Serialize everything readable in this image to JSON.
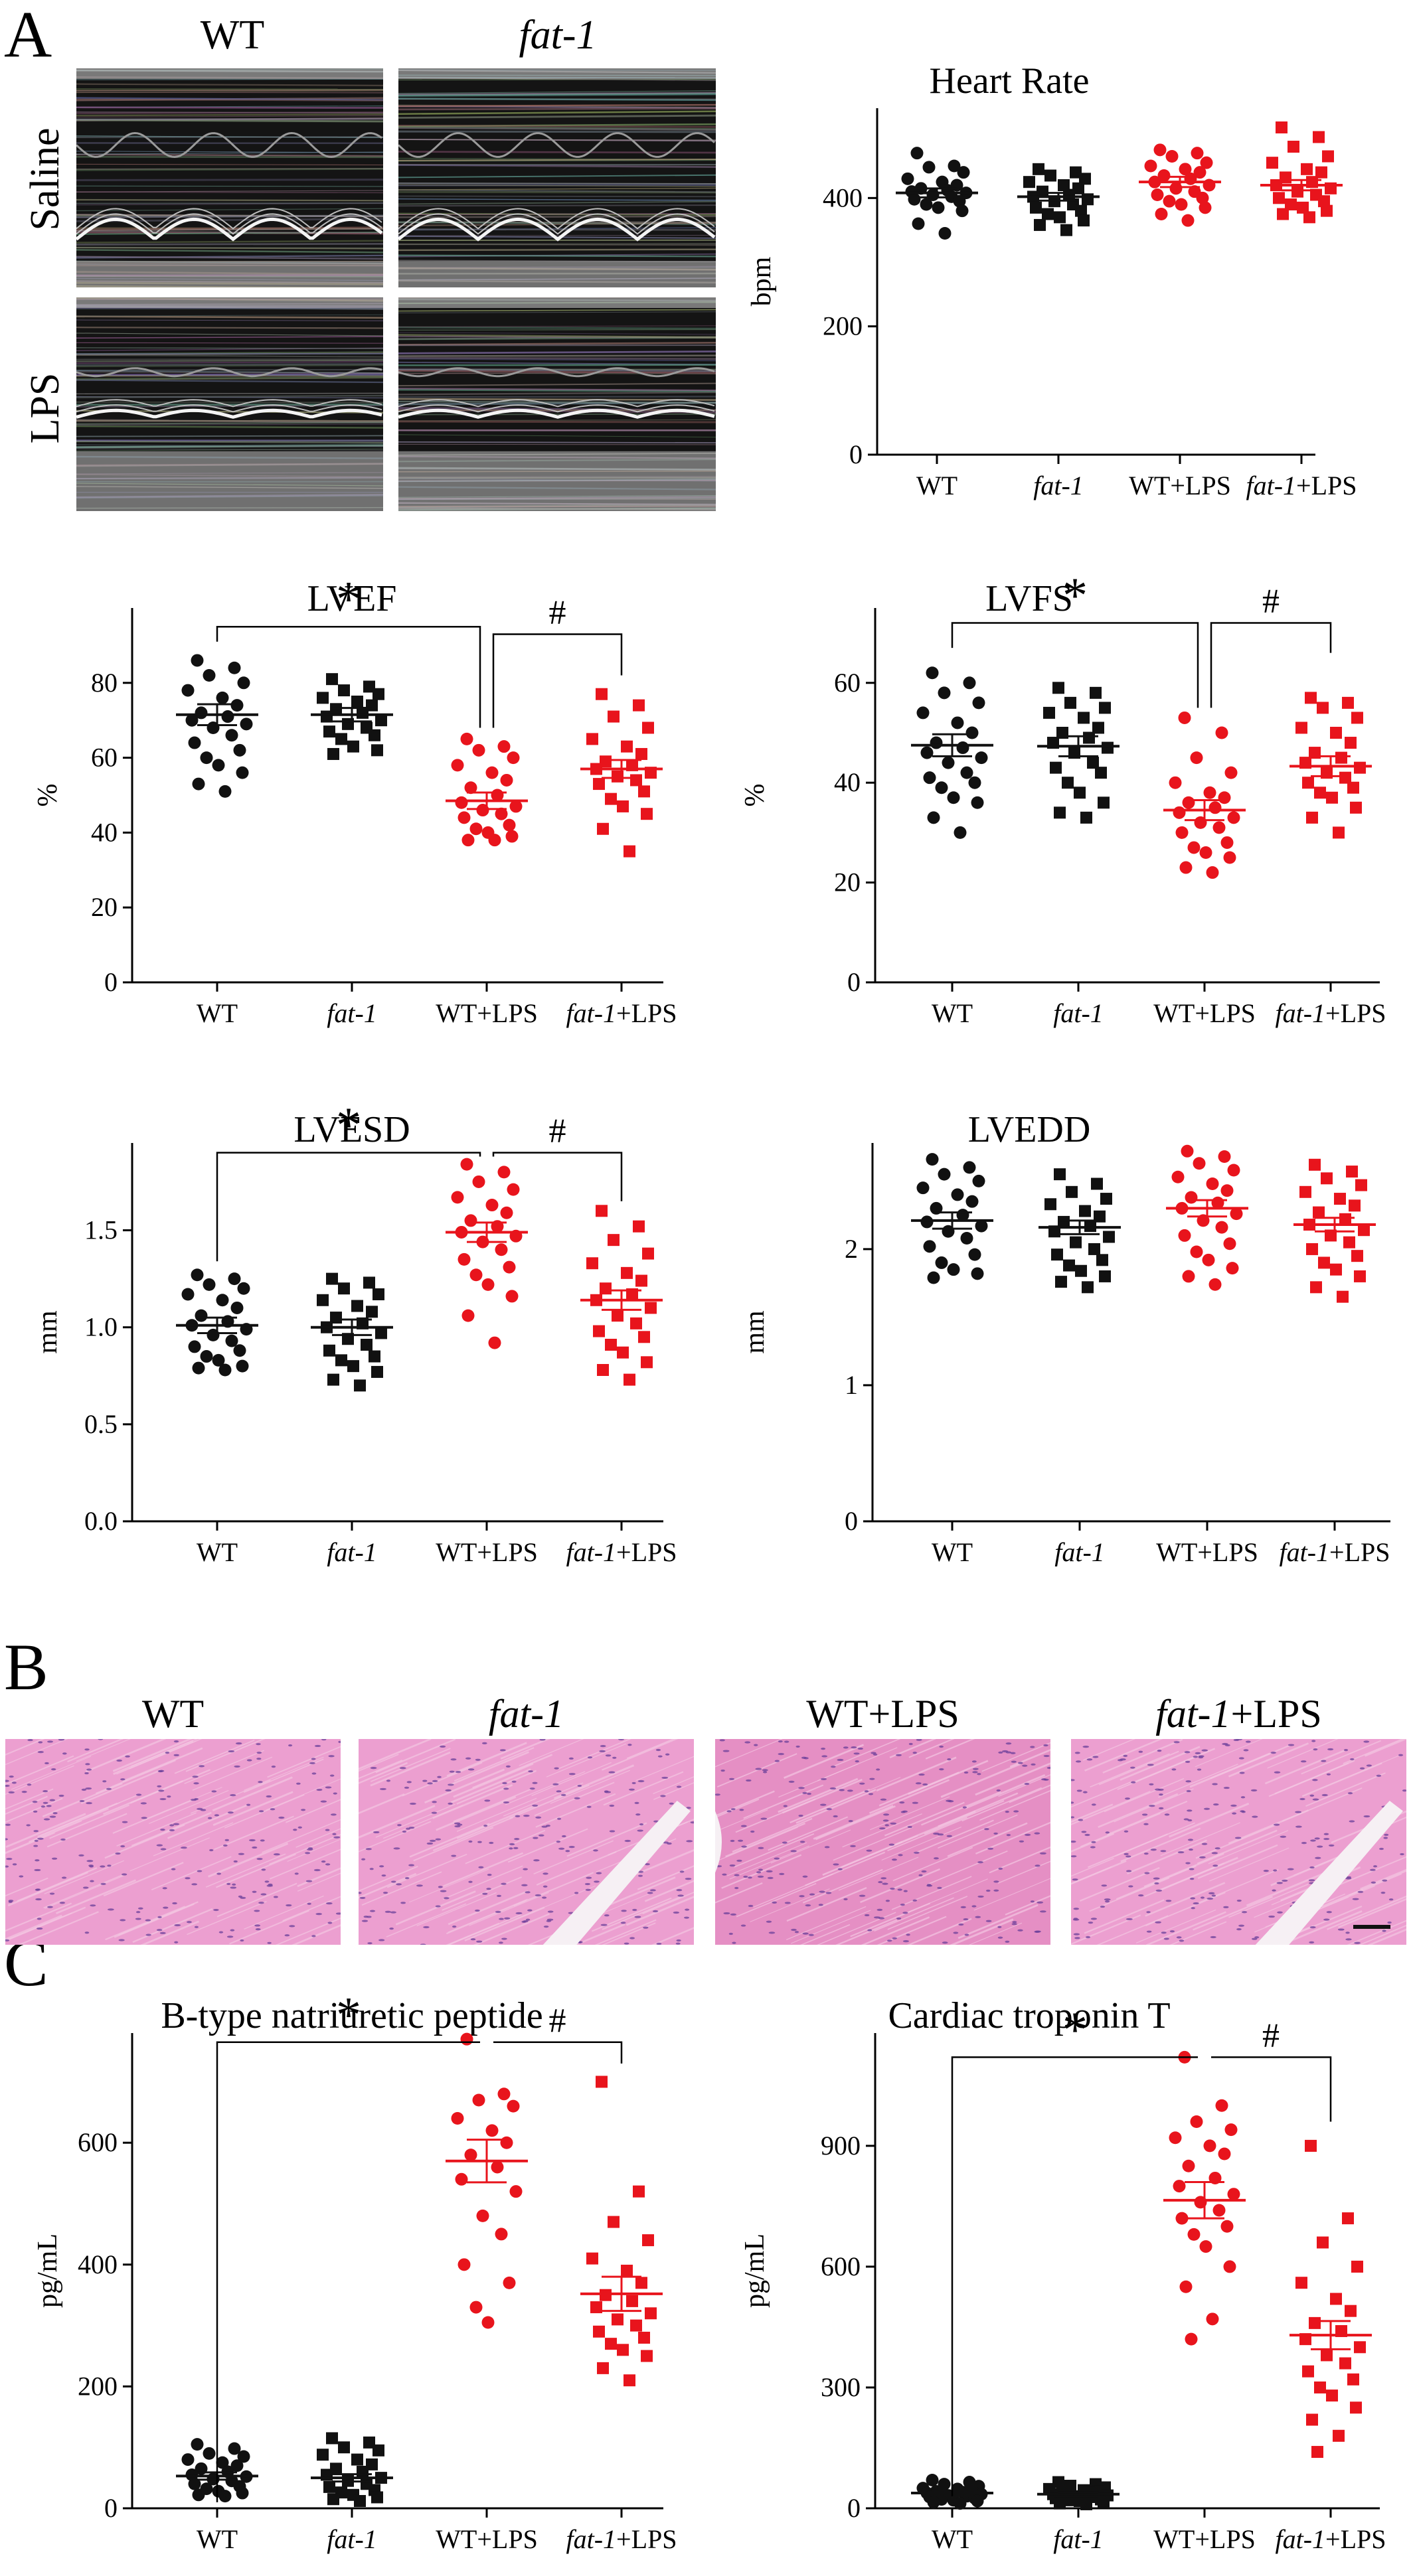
{
  "panel_letters": [
    "A",
    "B",
    "C"
  ],
  "panel_a": {
    "columns": [
      {
        "text": "WT",
        "italic": false
      },
      {
        "text": "fat-1",
        "italic": true
      }
    ],
    "rows": [
      "Saline",
      "LPS"
    ]
  },
  "panel_b": {
    "labels": [
      {
        "pre": "WT",
        "post": ""
      },
      {
        "pre": "fat-1",
        "post": ""
      },
      {
        "pre": "WT+LPS",
        "post": ""
      },
      {
        "pre": "fat-1",
        "post": "+LPS"
      }
    ]
  },
  "colors": {
    "control": "#111111",
    "lps": "#e8141c"
  },
  "chart_data": [
    {
      "id": "heart-rate",
      "type": "scatter",
      "title": "Heart Rate",
      "ylabel": "bpm",
      "categories": [
        "WT",
        "fat-1",
        "WT+LPS",
        "fat-1+LPS"
      ],
      "category_italic": [
        false,
        true,
        false,
        true
      ],
      "ylim": [
        0,
        540
      ],
      "yticks": [
        0,
        200,
        400
      ],
      "tick_labels": [
        "0",
        "200",
        "400"
      ],
      "markers": [
        "circle",
        "square",
        "circle",
        "square"
      ],
      "colors": [
        "#111111",
        "#111111",
        "#e8141c",
        "#e8141c"
      ],
      "means": [
        408,
        402,
        425,
        420
      ],
      "sem": [
        7,
        6,
        8,
        8
      ],
      "values": [
        [
          470,
          450,
          448,
          440,
          430,
          425,
          420,
          415,
          412,
          410,
          408,
          405,
          402,
          398,
          395,
          390,
          385,
          380,
          360,
          345
        ],
        [
          445,
          440,
          435,
          430,
          425,
          420,
          415,
          410,
          405,
          402,
          398,
          395,
          390,
          385,
          380,
          375,
          370,
          365,
          358,
          350
        ],
        [
          475,
          470,
          465,
          455,
          450,
          445,
          440,
          435,
          430,
          425,
          420,
          415,
          410,
          405,
          400,
          395,
          390,
          385,
          375,
          365
        ],
        [
          510,
          495,
          480,
          465,
          455,
          445,
          440,
          432,
          425,
          420,
          415,
          410,
          405,
          400,
          395,
          390,
          385,
          380,
          375,
          370
        ]
      ],
      "sig": []
    },
    {
      "id": "lvef",
      "type": "scatter",
      "title": "LVEF",
      "ylabel": "%",
      "categories": [
        "WT",
        "fat-1",
        "WT+LPS",
        "fat-1+LPS"
      ],
      "category_italic": [
        false,
        true,
        false,
        true
      ],
      "ylim": [
        0,
        100
      ],
      "yticks": [
        0,
        20,
        40,
        60,
        80
      ],
      "tick_labels": [
        "0",
        "20",
        "40",
        "60",
        "80"
      ],
      "markers": [
        "circle",
        "square",
        "circle",
        "square"
      ],
      "colors": [
        "#111111",
        "#111111",
        "#e8141c",
        "#e8141c"
      ],
      "means": [
        71.5,
        71.5,
        48.5,
        57
      ],
      "sem": [
        2.8,
        1.8,
        2.2,
        2.4
      ],
      "values": [
        [
          86,
          84,
          82,
          80,
          78,
          76,
          74,
          72,
          71,
          70,
          69,
          68,
          66,
          64,
          62,
          60,
          58,
          56,
          53,
          51
        ],
        [
          81,
          79,
          78,
          77,
          76,
          75,
          74,
          73,
          72,
          71,
          70,
          69,
          68,
          67,
          66,
          65,
          63,
          62,
          61
        ],
        [
          65,
          63,
          62,
          60,
          58,
          56,
          54,
          52,
          50,
          48,
          47,
          46,
          45,
          44,
          42,
          41,
          40,
          39,
          38,
          38
        ],
        [
          77,
          74,
          71,
          68,
          65,
          63,
          61,
          59,
          58,
          57,
          56,
          55,
          54,
          53,
          51,
          49,
          47,
          45,
          41,
          35
        ]
      ],
      "sig": [
        {
          "from": 0,
          "to": 2,
          "label": "*",
          "bar_y": 95,
          "left_y": 91,
          "right_y": 68
        },
        {
          "from": 2,
          "to": 3,
          "label": "#",
          "bar_y": 93,
          "left_y": 68,
          "right_y": 82
        }
      ]
    },
    {
      "id": "lvfs",
      "type": "scatter",
      "title": "LVFS",
      "ylabel": "%",
      "categories": [
        "WT",
        "fat-1",
        "WT+LPS",
        "fat-1+LPS"
      ],
      "category_italic": [
        false,
        true,
        false,
        true
      ],
      "ylim": [
        0,
        75
      ],
      "yticks": [
        0,
        20,
        40,
        60
      ],
      "tick_labels": [
        "0",
        "20",
        "40",
        "60"
      ],
      "markers": [
        "circle",
        "square",
        "circle",
        "square"
      ],
      "colors": [
        "#111111",
        "#111111",
        "#e8141c",
        "#e8141c"
      ],
      "means": [
        47.5,
        47.3,
        34.5,
        43.3
      ],
      "sem": [
        2.2,
        2.0,
        2.0,
        2.0
      ],
      "values": [
        [
          62,
          60,
          58,
          56,
          54,
          52,
          50,
          48,
          47,
          46,
          45,
          44,
          42,
          41,
          40,
          39,
          37,
          36,
          33,
          30
        ],
        [
          59,
          58,
          56,
          55,
          54,
          53,
          51,
          50,
          49,
          48,
          47,
          46,
          44,
          43,
          42,
          40,
          38,
          36,
          34,
          33
        ],
        [
          53,
          50,
          45,
          42,
          40,
          38,
          37,
          36,
          35,
          34,
          33,
          32,
          31,
          30,
          28,
          27,
          26,
          25,
          23,
          22
        ],
        [
          57,
          56,
          55,
          53,
          51,
          50,
          48,
          46,
          45,
          44,
          43,
          42,
          41,
          40,
          39,
          38,
          37,
          35,
          33,
          30
        ]
      ],
      "sig": [
        {
          "from": 0,
          "to": 2,
          "label": "*",
          "bar_y": 72,
          "left_y": 67,
          "right_y": 55
        },
        {
          "from": 2,
          "to": 3,
          "label": "#",
          "bar_y": 72,
          "left_y": 55,
          "right_y": 66
        }
      ]
    },
    {
      "id": "lvesd",
      "type": "scatter",
      "title": "LVESD",
      "ylabel": "mm",
      "categories": [
        "WT",
        "fat-1",
        "WT+LPS",
        "fat-1+LPS"
      ],
      "category_italic": [
        false,
        true,
        false,
        true
      ],
      "ylim": [
        0,
        1.95
      ],
      "yticks": [
        0,
        0.5,
        1.0,
        1.5
      ],
      "tick_labels": [
        "0.0",
        "0.5",
        "1.0",
        "1.5"
      ],
      "markers": [
        "circle",
        "square",
        "circle",
        "square"
      ],
      "colors": [
        "#111111",
        "#111111",
        "#e8141c",
        "#e8141c"
      ],
      "means": [
        1.01,
        1.0,
        1.49,
        1.14
      ],
      "sem": [
        0.04,
        0.04,
        0.05,
        0.05
      ],
      "values": [
        [
          1.27,
          1.25,
          1.22,
          1.2,
          1.17,
          1.14,
          1.1,
          1.06,
          1.03,
          1.01,
          0.99,
          0.96,
          0.93,
          0.9,
          0.88,
          0.85,
          0.83,
          0.8,
          0.79,
          0.78
        ],
        [
          1.25,
          1.23,
          1.2,
          1.17,
          1.14,
          1.11,
          1.08,
          1.05,
          1.02,
          1.0,
          0.97,
          0.94,
          0.91,
          0.88,
          0.85,
          0.83,
          0.8,
          0.77,
          0.73,
          0.7
        ],
        [
          1.84,
          1.8,
          1.75,
          1.71,
          1.67,
          1.63,
          1.59,
          1.55,
          1.52,
          1.49,
          1.47,
          1.44,
          1.4,
          1.35,
          1.31,
          1.27,
          1.22,
          1.16,
          1.06,
          0.92
        ],
        [
          1.6,
          1.52,
          1.45,
          1.38,
          1.33,
          1.28,
          1.24,
          1.2,
          1.17,
          1.14,
          1.1,
          1.06,
          1.02,
          0.98,
          0.95,
          0.91,
          0.87,
          0.82,
          0.78,
          0.73
        ]
      ],
      "sig": [
        {
          "from": 0,
          "to": 2,
          "label": "*",
          "bar_y": 1.9,
          "left_y": 1.34,
          "right_y": 1.88
        },
        {
          "from": 2,
          "to": 3,
          "label": "#",
          "bar_y": 1.9,
          "left_y": 1.88,
          "right_y": 1.65
        }
      ]
    },
    {
      "id": "lvedd",
      "type": "scatter",
      "title": "LVEDD",
      "ylabel": "mm",
      "categories": [
        "WT",
        "fat-1",
        "WT+LPS",
        "fat-1+LPS"
      ],
      "category_italic": [
        false,
        true,
        false,
        true
      ],
      "ylim": [
        0,
        2.78
      ],
      "yticks": [
        0,
        1,
        2
      ],
      "tick_labels": [
        "0",
        "1",
        "2"
      ],
      "markers": [
        "circle",
        "square",
        "circle",
        "square"
      ],
      "colors": [
        "#111111",
        "#111111",
        "#e8141c",
        "#e8141c"
      ],
      "means": [
        2.21,
        2.16,
        2.3,
        2.18
      ],
      "sem": [
        0.06,
        0.05,
        0.06,
        0.05
      ],
      "values": [
        [
          2.66,
          2.6,
          2.55,
          2.5,
          2.45,
          2.4,
          2.35,
          2.3,
          2.25,
          2.2,
          2.17,
          2.13,
          2.08,
          2.02,
          1.96,
          1.9,
          1.85,
          1.82,
          1.79
        ],
        [
          2.55,
          2.48,
          2.42,
          2.37,
          2.33,
          2.28,
          2.24,
          2.2,
          2.17,
          2.13,
          2.09,
          2.05,
          2.0,
          1.96,
          1.92,
          1.88,
          1.84,
          1.8,
          1.76,
          1.72
        ],
        [
          2.72,
          2.68,
          2.63,
          2.58,
          2.53,
          2.48,
          2.43,
          2.38,
          2.34,
          2.3,
          2.26,
          2.21,
          2.16,
          2.1,
          2.04,
          1.98,
          1.92,
          1.86,
          1.8,
          1.74
        ],
        [
          2.62,
          2.57,
          2.52,
          2.47,
          2.42,
          2.37,
          2.32,
          2.27,
          2.22,
          2.18,
          2.14,
          2.1,
          2.05,
          2.0,
          1.95,
          1.9,
          1.85,
          1.8,
          1.72,
          1.65
        ]
      ],
      "sig": []
    },
    {
      "id": "bnp",
      "type": "scatter",
      "title": "B-type natriuretic peptide",
      "ylabel": "pg/mL",
      "categories": [
        "WT",
        "fat-1",
        "WT+LPS",
        "fat-1+LPS"
      ],
      "category_italic": [
        false,
        true,
        false,
        true
      ],
      "ylim": [
        0,
        780
      ],
      "yticks": [
        0,
        200,
        400,
        600
      ],
      "tick_labels": [
        "0",
        "200",
        "400",
        "600"
      ],
      "markers": [
        "circle",
        "square",
        "circle",
        "square"
      ],
      "colors": [
        "#111111",
        "#111111",
        "#e8141c",
        "#e8141c"
      ],
      "means": [
        53,
        50,
        570,
        352
      ],
      "sem": [
        6,
        6,
        35,
        28
      ],
      "values": [
        [
          105,
          98,
          90,
          85,
          80,
          75,
          70,
          65,
          60,
          55,
          52,
          48,
          45,
          40,
          36,
          32,
          28,
          25,
          22,
          20
        ],
        [
          115,
          108,
          100,
          95,
          88,
          80,
          72,
          65,
          60,
          55,
          50,
          45,
          40,
          35,
          30,
          26,
          22,
          18,
          15,
          12
        ],
        [
          770,
          680,
          670,
          660,
          640,
          620,
          600,
          580,
          560,
          540,
          520,
          480,
          450,
          400,
          370,
          330,
          305
        ],
        [
          700,
          520,
          470,
          440,
          410,
          390,
          370,
          350,
          340,
          330,
          320,
          310,
          300,
          290,
          280,
          270,
          260,
          250,
          230,
          210
        ]
      ],
      "sig": [
        {
          "from": 0,
          "to": 2,
          "label": "*",
          "bar_y": 765,
          "left_y": 10,
          "right_y": 765
        },
        {
          "from": 2,
          "to": 3,
          "label": "#",
          "bar_y": 765,
          "left_y": 765,
          "right_y": 730
        }
      ]
    },
    {
      "id": "ctnt",
      "type": "scatter",
      "title": "Cardiac troponin T",
      "ylabel": "pg/mL",
      "categories": [
        "WT",
        "fat-1",
        "WT+LPS",
        "fat-1+LPS"
      ],
      "category_italic": [
        false,
        true,
        false,
        true
      ],
      "ylim": [
        0,
        1180
      ],
      "yticks": [
        0,
        300,
        600,
        900
      ],
      "tick_labels": [
        "0",
        "300",
        "600",
        "900"
      ],
      "markers": [
        "circle",
        "square",
        "circle",
        "square"
      ],
      "colors": [
        "#111111",
        "#111111",
        "#e8141c",
        "#e8141c"
      ],
      "means": [
        38,
        35,
        765,
        430
      ],
      "sem": [
        5,
        5,
        45,
        35
      ],
      "values": [
        [
          70,
          65,
          60,
          55,
          50,
          48,
          45,
          42,
          40,
          38,
          35,
          32,
          30,
          28,
          25,
          22,
          20,
          18,
          15,
          12
        ],
        [
          65,
          60,
          56,
          52,
          48,
          45,
          42,
          40,
          38,
          35,
          32,
          30,
          28,
          25,
          22,
          20,
          18,
          15,
          12,
          10
        ],
        [
          1120,
          1000,
          960,
          940,
          920,
          900,
          880,
          850,
          820,
          800,
          780,
          760,
          740,
          720,
          700,
          680,
          650,
          600,
          550,
          470,
          420
        ],
        [
          900,
          720,
          660,
          600,
          560,
          520,
          490,
          460,
          440,
          420,
          400,
          380,
          360,
          340,
          320,
          300,
          280,
          250,
          220,
          180,
          140
        ]
      ],
      "sig": [
        {
          "from": 0,
          "to": 2,
          "label": "*",
          "bar_y": 1120,
          "left_y": 30,
          "right_y": 1120
        },
        {
          "from": 2,
          "to": 3,
          "label": "#",
          "bar_y": 1120,
          "left_y": 1120,
          "right_y": 960
        }
      ]
    }
  ]
}
